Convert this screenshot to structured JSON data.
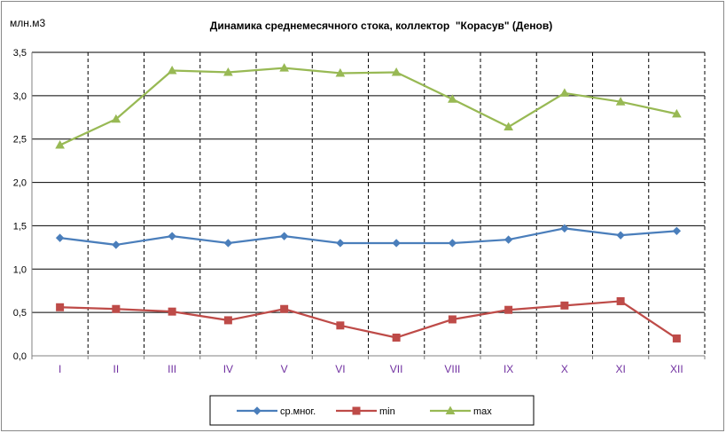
{
  "chart_data": {
    "type": "line",
    "title": "Динамика среднемесячного стока, коллектор  \"Корасув\" (Денов)",
    "ylabel": "млн.м3",
    "xlabel": "",
    "categories": [
      "I",
      "II",
      "III",
      "IV",
      "V",
      "VI",
      "VII",
      "VIII",
      "IX",
      "X",
      "XI",
      "XII"
    ],
    "y_ticks": [
      "0,0",
      "0,5",
      "1,0",
      "1,5",
      "2,0",
      "2,5",
      "3,0",
      "3,5"
    ],
    "ylim": [
      0,
      3.5
    ],
    "grid": true,
    "legend_position": "bottom",
    "series": [
      {
        "name": "ср.мног.",
        "color": "#4a7ebb",
        "marker": "diamond",
        "values": [
          1.36,
          1.28,
          1.38,
          1.3,
          1.38,
          1.3,
          1.3,
          1.3,
          1.34,
          1.47,
          1.39,
          1.44
        ]
      },
      {
        "name": "min",
        "color": "#be4b48",
        "marker": "square",
        "values": [
          0.56,
          0.54,
          0.51,
          0.41,
          0.54,
          0.35,
          0.21,
          0.42,
          0.53,
          0.58,
          0.63,
          0.2
        ]
      },
      {
        "name": "max",
        "color": "#98b954",
        "marker": "triangle",
        "values": [
          2.43,
          2.73,
          3.29,
          3.27,
          3.32,
          3.26,
          3.27,
          2.96,
          2.64,
          3.03,
          2.93,
          2.79
        ]
      }
    ],
    "colors": {
      "tick_label_x": "#7030a0",
      "grid": "#000000",
      "frame": "#898989"
    }
  }
}
